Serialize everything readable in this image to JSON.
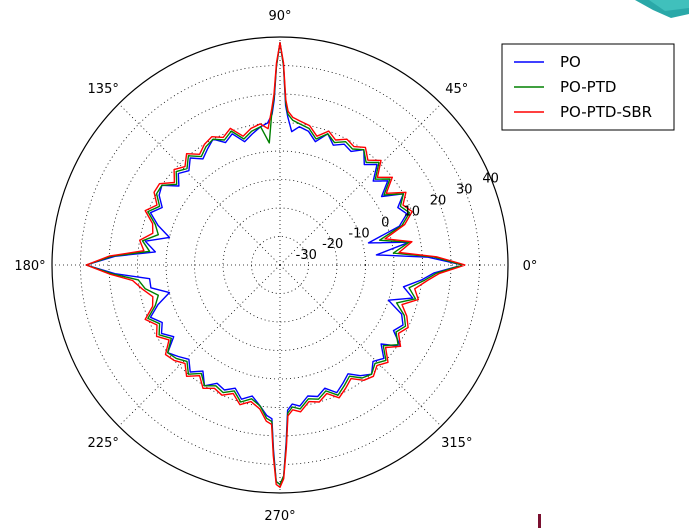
{
  "chart_data": {
    "type": "polar-line",
    "title": "",
    "angle_unit": "deg",
    "angle_ticks": [
      0,
      45,
      90,
      135,
      180,
      225,
      270,
      315
    ],
    "angle_tick_labels": [
      "0°",
      "45°",
      "90°",
      "135°",
      "180°",
      "225°",
      "270°",
      "315°"
    ],
    "radial_range": [
      -40,
      40
    ],
    "radial_ticks": [
      -30,
      -20,
      -10,
      0,
      10,
      20,
      30,
      40
    ],
    "radial_tick_labels": [
      "-30",
      "-20",
      "-10",
      "0",
      "10",
      "20",
      "30",
      "40"
    ],
    "grid": true,
    "legend": {
      "position": "top-right"
    },
    "series": [
      {
        "name": "PO",
        "color": "#0000ff",
        "angle": [
          0,
          3,
          6,
          10,
          14,
          18,
          22,
          26,
          30,
          34,
          38,
          42,
          46,
          50,
          54,
          58,
          62,
          66,
          70,
          74,
          78,
          82,
          85,
          87,
          88,
          89,
          90,
          91,
          92,
          93,
          95,
          98,
          102,
          106,
          110,
          114,
          118,
          122,
          126,
          130,
          134,
          138,
          142,
          146,
          150,
          154,
          158,
          162,
          166,
          170,
          174,
          177,
          180,
          183,
          186,
          190,
          194,
          198,
          202,
          206,
          210,
          214,
          218,
          222,
          226,
          230,
          234,
          238,
          242,
          246,
          250,
          254,
          258,
          262,
          265,
          267,
          268,
          269,
          270,
          271,
          272,
          273,
          275,
          278,
          282,
          286,
          290,
          294,
          298,
          302,
          306,
          310,
          314,
          318,
          322,
          326,
          330,
          334,
          338,
          342,
          346,
          350,
          354,
          357,
          360
        ],
        "r": [
          24,
          12,
          -6,
          6,
          -8,
          4,
          8,
          6,
          10,
          3,
          8,
          4,
          9,
          6,
          10,
          7,
          8,
          6,
          9,
          5,
          8,
          9,
          7,
          12,
          16,
          30,
          38,
          30,
          18,
          13,
          10,
          9,
          7,
          5,
          9,
          7,
          10,
          8,
          6,
          9,
          6,
          8,
          5,
          10,
          9,
          6,
          9,
          5,
          0,
          8,
          4,
          18,
          28,
          18,
          6,
          6,
          0,
          5,
          9,
          6,
          8,
          5,
          10,
          8,
          6,
          9,
          6,
          10,
          7,
          8,
          6,
          9,
          7,
          10,
          13,
          14,
          25,
          36,
          37,
          34,
          22,
          11,
          9,
          10,
          7,
          8,
          6,
          9,
          7,
          5,
          8,
          10,
          7,
          9,
          5,
          11,
          6,
          8,
          6,
          0,
          8,
          4,
          10,
          14,
          24
        ]
      },
      {
        "name": "PO-PTD",
        "color": "#008000",
        "angle": [
          0,
          3,
          6,
          10,
          14,
          18,
          22,
          26,
          30,
          34,
          38,
          42,
          46,
          50,
          54,
          58,
          62,
          66,
          70,
          74,
          78,
          82,
          85,
          87,
          88,
          89,
          90,
          91,
          92,
          93,
          95,
          98,
          102,
          106,
          110,
          114,
          118,
          122,
          126,
          130,
          134,
          138,
          142,
          146,
          150,
          154,
          158,
          162,
          166,
          170,
          174,
          177,
          180,
          183,
          186,
          190,
          194,
          198,
          202,
          206,
          210,
          214,
          218,
          222,
          226,
          230,
          234,
          238,
          242,
          246,
          250,
          254,
          258,
          262,
          265,
          267,
          268,
          269,
          270,
          271,
          272,
          273,
          275,
          278,
          282,
          286,
          290,
          294,
          298,
          302,
          306,
          310,
          314,
          318,
          322,
          326,
          330,
          334,
          338,
          342,
          346,
          350,
          354,
          357,
          360
        ],
        "r": [
          24,
          14,
          0,
          6,
          -4,
          5,
          9,
          7,
          10,
          4,
          9,
          5,
          10,
          7,
          10,
          8,
          9,
          7,
          9,
          6,
          9,
          10,
          11,
          13,
          17,
          30,
          38,
          30,
          19,
          14,
          3,
          9,
          8,
          6,
          10,
          8,
          10,
          9,
          7,
          10,
          7,
          9,
          6,
          10,
          10,
          7,
          10,
          6,
          4,
          9,
          6,
          19,
          28,
          19,
          10,
          8,
          4,
          6,
          10,
          7,
          9,
          6,
          10,
          9,
          7,
          10,
          7,
          10,
          8,
          9,
          7,
          10,
          8,
          10,
          14,
          15,
          26,
          36,
          37,
          34,
          23,
          12,
          10,
          11,
          8,
          9,
          7,
          10,
          8,
          6,
          9,
          10,
          8,
          10,
          6,
          10,
          7,
          9,
          7,
          3,
          9,
          6,
          11,
          15,
          24
        ]
      },
      {
        "name": "PO-PTD-SBR",
        "color": "#ff0000",
        "angle": [
          0,
          3,
          6,
          10,
          14,
          18,
          22,
          26,
          30,
          34,
          38,
          42,
          46,
          50,
          54,
          58,
          62,
          66,
          70,
          74,
          78,
          82,
          85,
          87,
          88,
          89,
          90,
          91,
          92,
          93,
          95,
          98,
          102,
          106,
          110,
          114,
          118,
          122,
          126,
          130,
          134,
          138,
          142,
          146,
          150,
          154,
          158,
          162,
          166,
          170,
          174,
          177,
          180,
          183,
          186,
          190,
          194,
          198,
          202,
          206,
          210,
          214,
          218,
          222,
          226,
          230,
          234,
          238,
          242,
          246,
          250,
          254,
          258,
          262,
          265,
          267,
          268,
          269,
          270,
          271,
          272,
          273,
          275,
          278,
          282,
          286,
          290,
          294,
          298,
          302,
          306,
          310,
          314,
          318,
          322,
          326,
          330,
          334,
          338,
          342,
          346,
          350,
          354,
          357,
          360
        ],
        "r": [
          25,
          15,
          2,
          7,
          -2,
          6,
          10,
          8,
          11,
          5,
          10,
          6,
          11,
          8,
          11,
          9,
          10,
          8,
          10,
          7,
          10,
          11,
          12,
          14,
          18,
          31,
          38,
          31,
          20,
          15,
          8,
          10,
          9,
          7,
          11,
          9,
          11,
          10,
          8,
          11,
          8,
          10,
          7,
          11,
          11,
          8,
          11,
          7,
          6,
          10,
          8,
          20,
          28,
          20,
          12,
          9,
          6,
          7,
          11,
          8,
          10,
          7,
          11,
          10,
          8,
          11,
          8,
          11,
          9,
          10,
          8,
          11,
          9,
          11,
          15,
          16,
          27,
          37,
          38,
          35,
          24,
          13,
          11,
          12,
          9,
          10,
          8,
          11,
          9,
          7,
          10,
          11,
          9,
          11,
          7,
          11,
          8,
          10,
          8,
          5,
          10,
          8,
          12,
          16,
          25
        ]
      }
    ]
  }
}
